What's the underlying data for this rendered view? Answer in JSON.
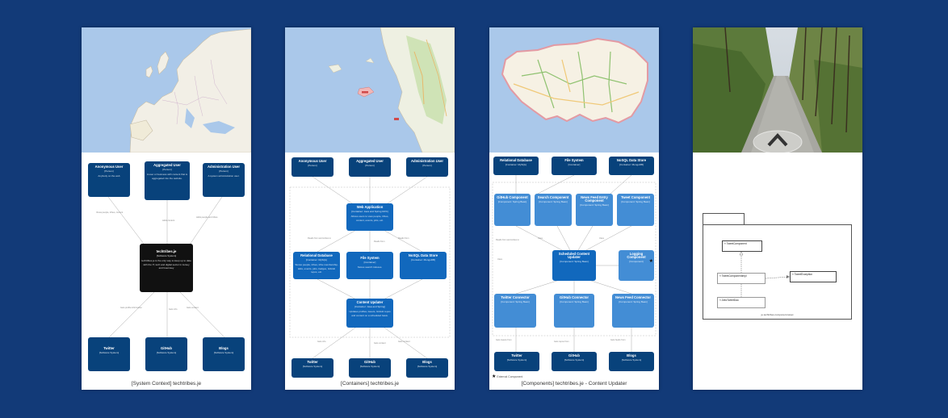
{
  "slides": [
    {
      "caption": "[System Context] techtribes.je",
      "boxes": {
        "anon": {
          "title": "Anonymous User",
          "sub": "[Person]",
          "desc": "Anybody on the web"
        },
        "agg": {
          "title": "Aggregated User",
          "sub": "[Person]",
          "desc": "A user or business with content that is aggregated into the website."
        },
        "admin": {
          "title": "Administration User",
          "sub": "[Person]",
          "desc": "A system administration user."
        },
        "core": {
          "title": "techtribes.je",
          "sub": "[Software System]",
          "desc": "techtribes.je is the only way to keep up to date with the IT, tech and digital sector in Jersey and Guernsey"
        },
        "twitter": {
          "title": "Twitter",
          "sub": "[Software System]"
        },
        "github": {
          "title": "GitHub",
          "sub": "[Software System]"
        },
        "blogs": {
          "title": "Blogs",
          "sub": "[Software System]"
        }
      }
    },
    {
      "caption": "[Containers] techtribes.je",
      "boxes": {
        "anon": {
          "title": "Anonymous User",
          "sub": "[Person]"
        },
        "agg": {
          "title": "Aggregated User",
          "sub": "[Person]"
        },
        "admin": {
          "title": "Administration User",
          "sub": "[Person]"
        },
        "web": {
          "title": "Web Application",
          "sub": "[Container: Java and Spring MVC]",
          "desc": "Allows users to view people, tribes, content, events, jobs, etc."
        },
        "db": {
          "title": "Relational Database",
          "sub": "[Container: MySQL]",
          "desc": "Stores people, tribes, tribe membership, talks, events, jobs, badges, GitHub repos, etc."
        },
        "fs": {
          "title": "File System",
          "sub": "[Container]",
          "desc": "Stores search indexes."
        },
        "nosql": {
          "title": "NoSQL Data Store",
          "sub": "[Container: MongoDB]"
        },
        "updater": {
          "title": "Content Updater",
          "sub": "[Container: Java and Spring]",
          "desc": "Updates profiles, tweets, GitHub repos and content on a scheduled basis."
        },
        "twitter": {
          "title": "Twitter",
          "sub": "[Software System]"
        },
        "github": {
          "title": "GitHub",
          "sub": "[Software System]"
        },
        "blogs": {
          "title": "Blogs",
          "sub": "[Software System]"
        }
      }
    },
    {
      "caption": "[Components] techtribes.je - Content Updater",
      "legend": "External Component",
      "boxes": {
        "reldb": {
          "title": "Relational Database",
          "sub": "[Container: MySQL]"
        },
        "fs": {
          "title": "File System",
          "sub": "[Container]"
        },
        "nosql": {
          "title": "NoSQL Data Store",
          "sub": "[Container: MongoDB]"
        },
        "c1": {
          "title": "GitHub Component",
          "sub": "[Component: Spring Bean]"
        },
        "c2": {
          "title": "Search Component",
          "sub": "[Component: Spring Bean]"
        },
        "c3": {
          "title": "News Feed Entry Component",
          "sub": "[Component: Spring Bean]"
        },
        "c4": {
          "title": "Tweet Component",
          "sub": "[Component: Spring Bean]"
        },
        "sched": {
          "title": "Scheduled Content Updater",
          "sub": "[Component: Spring Bean]"
        },
        "log": {
          "title": "Logging Component",
          "sub": "[Component]"
        },
        "twc": {
          "title": "Twitter Connector",
          "sub": "[Component: Spring Bean]"
        },
        "ghc": {
          "title": "GitHub Connector",
          "sub": "[Component: Spring Bean]"
        },
        "nfc": {
          "title": "News Feed Connector",
          "sub": "[Component: Spring Bean]"
        },
        "twitter": {
          "title": "Twitter",
          "sub": "[Software System]"
        },
        "github": {
          "title": "GitHub",
          "sub": "[Software System]"
        },
        "blogs": {
          "title": "Blogs",
          "sub": "[Software System]"
        }
      }
    },
    {
      "uml": {
        "c1": "« TweetComponent",
        "c2": "« TweetComponentImpl",
        "c3": "« TweetException",
        "c4": "« JdbcTweetDao",
        "caption": "je.techtribes.component.tweet"
      }
    }
  ]
}
